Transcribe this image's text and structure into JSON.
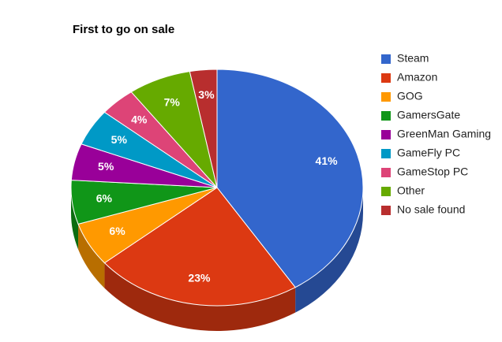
{
  "chart_data": {
    "type": "pie",
    "title": "First to go on sale",
    "categories": [
      "Steam",
      "Amazon",
      "GOG",
      "GamersGate",
      "GreenMan Gaming",
      "GameFly PC",
      "GameStop PC",
      "Other",
      "No sale found"
    ],
    "values": [
      41,
      23,
      6,
      6,
      5,
      5,
      4,
      7,
      3
    ],
    "value_labels": [
      "41%",
      "23%",
      "6%",
      "6%",
      "5%",
      "5%",
      "4%",
      "7%",
      "3%"
    ],
    "colors": [
      "#3366cc",
      "#dc3912",
      "#ff9900",
      "#109618",
      "#990099",
      "#0099c6",
      "#dd4477",
      "#66aa00",
      "#b82e2e"
    ],
    "legend": "right"
  }
}
